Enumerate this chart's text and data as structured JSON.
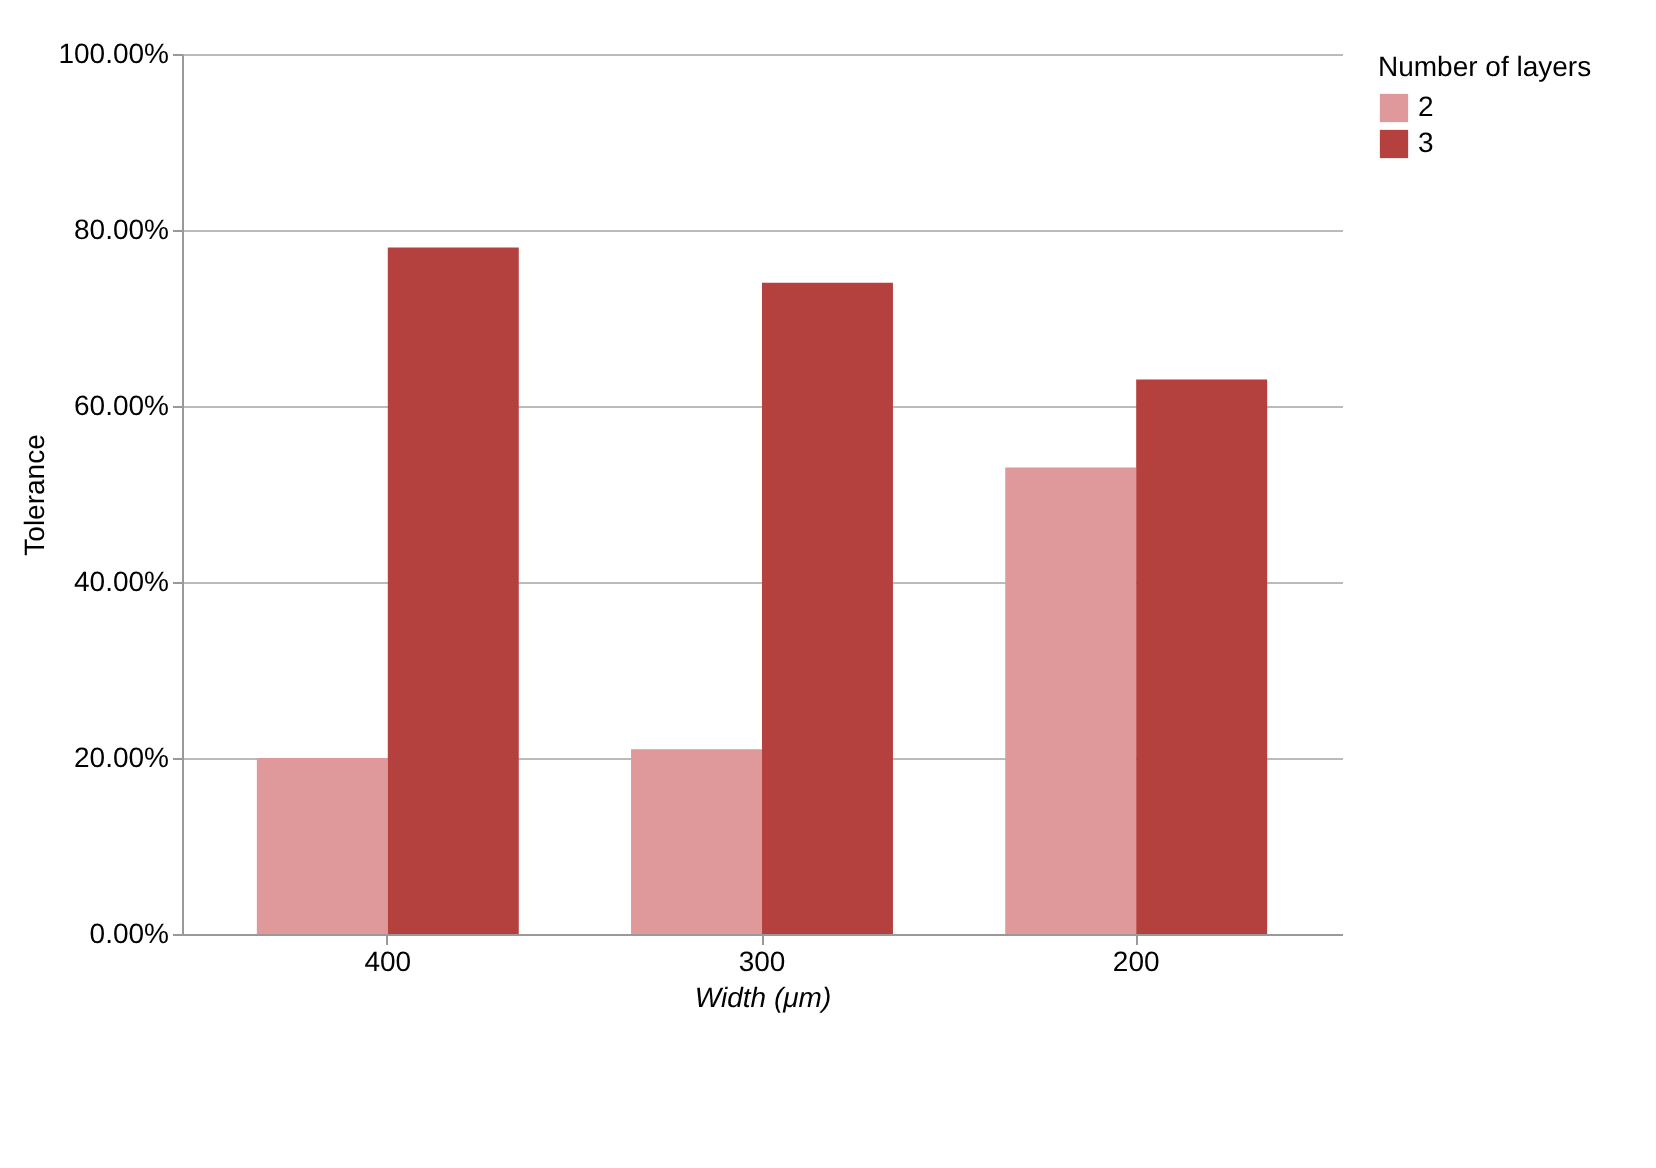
{
  "chart_data": {
    "type": "bar",
    "xlabel": "Width (μm)",
    "ylabel": "Tolerance",
    "legend_title": "Number of layers",
    "categories": [
      "400",
      "300",
      "200"
    ],
    "series": [
      {
        "name": "2",
        "color": "#e0999a",
        "values": [
          20,
          21,
          53
        ]
      },
      {
        "name": "3",
        "color": "#b5413f",
        "values": [
          78,
          74,
          63
        ]
      }
    ],
    "ylim": [
      0,
      100
    ],
    "yticks": [
      {
        "value": 0,
        "label": "0.00%"
      },
      {
        "value": 20,
        "label": "20.00%"
      },
      {
        "value": 40,
        "label": "40.00%"
      },
      {
        "value": 60,
        "label": "60.00%"
      },
      {
        "value": 80,
        "label": "80.00%"
      },
      {
        "value": 100,
        "label": "100.00%"
      }
    ],
    "grid": "y",
    "legend": "right"
  }
}
